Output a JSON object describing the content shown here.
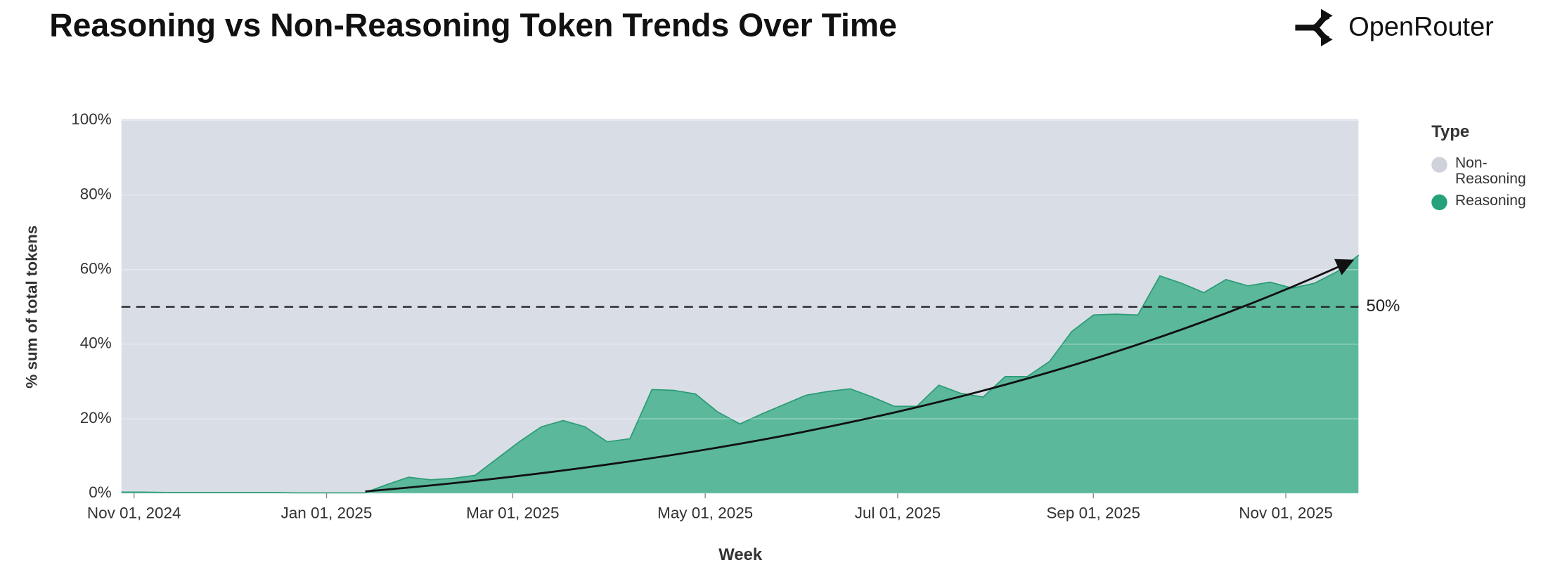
{
  "brand": "OpenRouter",
  "chart_data": {
    "type": "area",
    "stacked": true,
    "title": "Reasoning vs Non-Reasoning Token Trends Over Time",
    "x_label": "Week",
    "y_label": "% sum of total tokens",
    "legend_title": "Type",
    "legend_position": "right",
    "grid": true,
    "x": [
      "2024-10-28",
      "2024-11-04",
      "2024-11-11",
      "2024-11-18",
      "2024-11-25",
      "2024-12-02",
      "2024-12-09",
      "2024-12-16",
      "2024-12-23",
      "2024-12-30",
      "2025-01-06",
      "2025-01-13",
      "2025-01-20",
      "2025-01-27",
      "2025-02-03",
      "2025-02-10",
      "2025-02-17",
      "2025-02-24",
      "2025-03-03",
      "2025-03-10",
      "2025-03-17",
      "2025-03-24",
      "2025-03-31",
      "2025-04-07",
      "2025-04-14",
      "2025-04-21",
      "2025-04-28",
      "2025-05-05",
      "2025-05-12",
      "2025-05-19",
      "2025-05-26",
      "2025-06-02",
      "2025-06-09",
      "2025-06-16",
      "2025-06-23",
      "2025-06-30",
      "2025-07-07",
      "2025-07-14",
      "2025-07-21",
      "2025-07-28",
      "2025-08-04",
      "2025-08-11",
      "2025-08-18",
      "2025-08-25",
      "2025-09-01",
      "2025-09-08",
      "2025-09-15",
      "2025-09-22",
      "2025-09-29",
      "2025-10-06",
      "2025-10-13",
      "2025-10-20",
      "2025-10-27",
      "2025-11-03",
      "2025-11-10",
      "2025-11-17",
      "2025-11-24"
    ],
    "series": [
      {
        "name": "Reasoning",
        "color": "#5bb89b",
        "line_color": "#2c9c76",
        "legend_color": "#25a27b",
        "values": [
          0.5,
          0.5,
          0.4,
          0.4,
          0.4,
          0.4,
          0.4,
          0.4,
          0.3,
          0.3,
          0.3,
          0.3,
          2.5,
          4.5,
          3.8,
          4.2,
          5,
          9.5,
          14,
          18,
          19.7,
          18,
          14,
          14.8,
          28,
          27.8,
          26.8,
          22,
          18.8,
          21.5,
          24,
          26.5,
          27.5,
          28.2,
          26,
          23.5,
          23.5,
          29.2,
          27,
          26,
          31.5,
          31.5,
          35.5,
          43.5,
          48,
          48.2,
          48,
          58.5,
          56.5,
          54,
          57.5,
          55.8,
          56.8,
          55.2,
          56.5,
          59.5,
          64
        ]
      },
      {
        "name": "Non-Reasoning",
        "color": "#d9dee6",
        "line_color": "#d9dee6",
        "legend_color": "#cfd3d9",
        "values": [
          99.5,
          99.5,
          99.6,
          99.6,
          99.6,
          99.6,
          99.6,
          99.6,
          99.7,
          99.7,
          99.7,
          99.7,
          97.5,
          95.5,
          96.2,
          95.8,
          95,
          90.5,
          86,
          82,
          80.3,
          82,
          86,
          85.2,
          72,
          72.2,
          73.2,
          78,
          81.2,
          78.5,
          76,
          73.5,
          72.5,
          71.8,
          74,
          76.5,
          76.5,
          70.8,
          73,
          74,
          68.5,
          68.5,
          64.5,
          56.5,
          52,
          51.8,
          52,
          41.5,
          43.5,
          46,
          42.5,
          44.2,
          43.2,
          44.8,
          43.5,
          40.5,
          36
        ]
      }
    ],
    "xlim": [
      "2024-10-28",
      "2025-11-24"
    ],
    "xticks": [
      {
        "value": "2024-11-01",
        "label": "Nov 01, 2024"
      },
      {
        "value": "2025-01-01",
        "label": "Jan 01, 2025"
      },
      {
        "value": "2025-03-01",
        "label": "Mar 01, 2025"
      },
      {
        "value": "2025-05-01",
        "label": "May 01, 2025"
      },
      {
        "value": "2025-07-01",
        "label": "Jul 01, 2025"
      },
      {
        "value": "2025-09-01",
        "label": "Sep 01, 2025"
      },
      {
        "value": "2025-11-01",
        "label": "Nov 01, 2025"
      }
    ],
    "ylim": [
      0,
      100
    ],
    "yticks": [
      {
        "value": 0,
        "label": "0%"
      },
      {
        "value": 20,
        "label": "20%"
      },
      {
        "value": 40,
        "label": "40%"
      },
      {
        "value": 60,
        "label": "60%"
      },
      {
        "value": 80,
        "label": "80%"
      },
      {
        "value": 100,
        "label": "100%"
      }
    ],
    "reference_line": {
      "value": 50,
      "label": "50%"
    }
  }
}
